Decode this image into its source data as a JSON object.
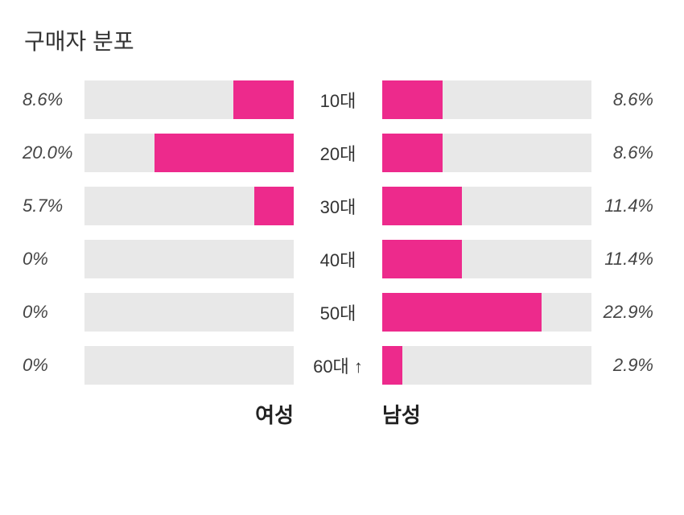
{
  "chart": {
    "title": "구매자 분포",
    "type": "bidirectional-bar",
    "max_value": 30,
    "bar_background_color": "#e8e8e8",
    "bar_fill_color": "#ed2a8c",
    "left_group_label": "여성",
    "right_group_label": "남성",
    "rows": [
      {
        "age": "10대",
        "left_value": 8.6,
        "left_label": "8.6%",
        "right_value": 8.6,
        "right_label": "8.6%"
      },
      {
        "age": "20대",
        "left_value": 20.0,
        "left_label": "20.0%",
        "right_value": 8.6,
        "right_label": "8.6%"
      },
      {
        "age": "30대",
        "left_value": 5.7,
        "left_label": "5.7%",
        "right_value": 11.4,
        "right_label": "11.4%"
      },
      {
        "age": "40대",
        "left_value": 0,
        "left_label": "0%",
        "right_value": 11.4,
        "right_label": "11.4%"
      },
      {
        "age": "50대",
        "left_value": 0,
        "left_label": "0%",
        "right_value": 22.9,
        "right_label": "22.9%"
      },
      {
        "age": "60대 ↑",
        "left_value": 0,
        "left_label": "0%",
        "right_value": 2.9,
        "right_label": "2.9%"
      }
    ]
  }
}
